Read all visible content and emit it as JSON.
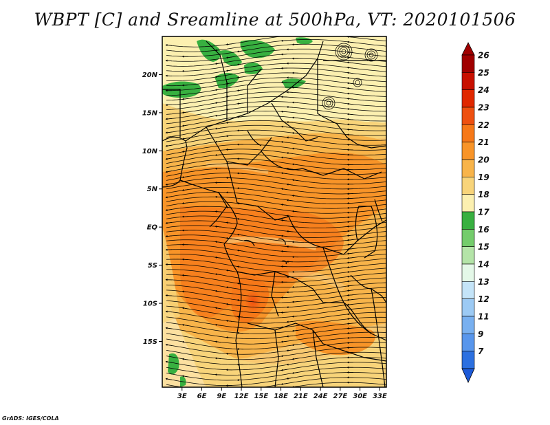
{
  "title": "WBPT [C] and Sreamline at 500hPa, VT: 2020101506",
  "credit": "GrADS: IGES/COLA",
  "map": {
    "lat_range": [
      -21,
      25
    ],
    "lon_range": [
      0,
      34
    ],
    "lat_ticks": [
      {
        "value": 20,
        "label": "20N"
      },
      {
        "value": 15,
        "label": "15N"
      },
      {
        "value": 10,
        "label": "10N"
      },
      {
        "value": 5,
        "label": "5N"
      },
      {
        "value": 0,
        "label": "EQ"
      },
      {
        "value": -5,
        "label": "5S"
      },
      {
        "value": -10,
        "label": "10S"
      },
      {
        "value": -15,
        "label": "15S"
      }
    ],
    "lon_ticks": [
      {
        "value": 3,
        "label": "3E"
      },
      {
        "value": 6,
        "label": "6E"
      },
      {
        "value": 9,
        "label": "9E"
      },
      {
        "value": 12,
        "label": "12E"
      },
      {
        "value": 15,
        "label": "15E"
      },
      {
        "value": 18,
        "label": "18E"
      },
      {
        "value": 21,
        "label": "21E"
      },
      {
        "value": 24,
        "label": "24E"
      },
      {
        "value": 27,
        "label": "27E"
      },
      {
        "value": 30,
        "label": "30E"
      },
      {
        "value": 33,
        "label": "33E"
      }
    ]
  },
  "colorbar": {
    "levels": [
      {
        "label": "26",
        "color": "#a00000"
      },
      {
        "label": "25",
        "color": "#c81000"
      },
      {
        "label": "24",
        "color": "#e02800"
      },
      {
        "label": "23",
        "color": "#ee5010"
      },
      {
        "label": "22",
        "color": "#f67818"
      },
      {
        "label": "21",
        "color": "#f89428"
      },
      {
        "label": "20",
        "color": "#f8b44a"
      },
      {
        "label": "19",
        "color": "#f8d47a"
      },
      {
        "label": "18",
        "color": "#fcf0b0"
      },
      {
        "label": "17",
        "color": "#38b040"
      },
      {
        "label": "16",
        "color": "#74cc6c"
      },
      {
        "label": "15",
        "color": "#b4e4a8"
      },
      {
        "label": "14",
        "color": "#e4f8e8"
      },
      {
        "label": "13",
        "color": "#c4e4f8"
      },
      {
        "label": "12",
        "color": "#9ccaf4"
      },
      {
        "label": "11",
        "color": "#78b0f0"
      },
      {
        "label": "9",
        "color": "#5896ec"
      },
      {
        "label": "7",
        "color": "#2c70e0"
      }
    ],
    "top_arrow_color": "#a00000",
    "bottom_arrow_color": "#1c5ad8"
  }
}
